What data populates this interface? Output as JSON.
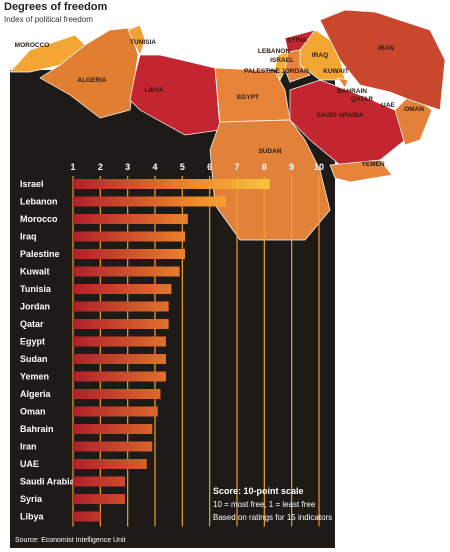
{
  "chart_data": {
    "type": "bar",
    "orientation": "horizontal",
    "title": "Degrees of freedom",
    "subtitle": "Index of political freedom",
    "categories": [
      "Israel",
      "Lebanon",
      "Morocco",
      "Iraq",
      "Palestine",
      "Kuwait",
      "Tunisia",
      "Jordan",
      "Qatar",
      "Egypt",
      "Sudan",
      "Yemen",
      "Algeria",
      "Oman",
      "Bahrain",
      "Iran",
      "UAE",
      "Saudi Arabia",
      "Syria",
      "Libya"
    ],
    "values": [
      8.2,
      6.6,
      5.2,
      5.1,
      5.1,
      4.9,
      4.6,
      4.5,
      4.5,
      4.4,
      4.4,
      4.4,
      4.2,
      4.1,
      3.9,
      3.9,
      3.7,
      2.9,
      2.9,
      2.0
    ],
    "xlim": [
      1,
      10
    ],
    "xticks": [
      1,
      2,
      3,
      4,
      5,
      6,
      7,
      8,
      9,
      10
    ],
    "colors": [
      "#b01f2b",
      "#ee8a2b",
      "#f9c93e"
    ],
    "grid": true,
    "notes": [
      "Score: 10-point scale",
      "10 = most free, 1 = least free",
      "Based on ratings for 15 indicators"
    ],
    "source": "Source: Economist Intelligence Unit"
  },
  "map": {
    "labels": [
      "MOROCCO",
      "TUNISIA",
      "ALGERIA",
      "LIBYA",
      "EGYPT",
      "SUDAN",
      "SYRIA",
      "LEBANON",
      "ISRAEL",
      "PALESTINE",
      "JORDAN",
      "IRAQ",
      "KUWAIT",
      "IRAN",
      "BAHRAIN",
      "QATAR",
      "UAE",
      "SAUDI ARABIA",
      "OMAN",
      "YEMEN"
    ]
  }
}
